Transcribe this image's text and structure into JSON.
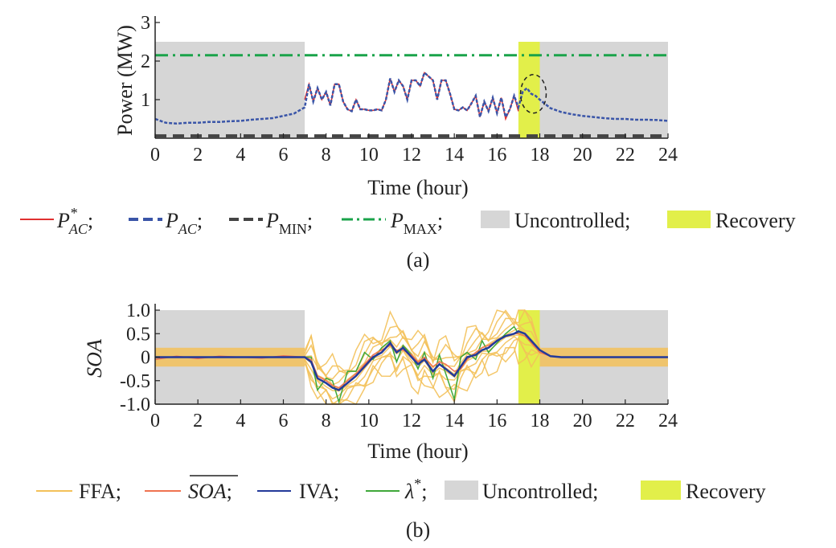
{
  "figure": {
    "colors": {
      "p_ac_star": "#e03030",
      "p_ac": "#3a55a8",
      "p_min": "#444444",
      "p_max": "#1aa34a",
      "uncontrolled": "#d6d6d6",
      "recovery": "#e2ef4a",
      "ffa": "#f3c15a",
      "soa_mean": "#ef7350",
      "iva": "#233a9a",
      "lambda": "#3fa83a",
      "circle": "#222222"
    }
  },
  "chart_data": [
    {
      "type": "line",
      "panel_label": "(a)",
      "xlabel": "Time (hour)",
      "ylabel": "Power (MW)",
      "xlim": [
        0,
        24
      ],
      "ylim": [
        0,
        3
      ],
      "xticks": [
        "0",
        "2",
        "4",
        "6",
        "8",
        "10",
        "12",
        "14",
        "16",
        "18",
        "20",
        "22",
        "24"
      ],
      "yticks": [
        "1",
        "2",
        "3"
      ],
      "shaded_regions": [
        {
          "name": "Uncontrolled",
          "x": [
            0,
            7
          ],
          "y": [
            0,
            2.5
          ]
        },
        {
          "name": "Uncontrolled",
          "x": [
            18,
            24
          ],
          "y": [
            0,
            2.5
          ]
        },
        {
          "name": "Recovery",
          "x": [
            17,
            18
          ],
          "y": [
            0,
            2.5
          ]
        }
      ],
      "annotation": {
        "type": "dashed-circle",
        "center": [
          17.7,
          1.15
        ],
        "radius": [
          0.6,
          0.5
        ]
      },
      "series": [
        {
          "id": "p_ac_star",
          "x": [
            7.0,
            7.2,
            7.4,
            7.6,
            7.8,
            8.0,
            8.2,
            8.4,
            8.6,
            8.8,
            9.0,
            9.2,
            9.4,
            9.6,
            9.8,
            10.0,
            10.2,
            10.4,
            10.6,
            10.8,
            11.0,
            11.2,
            11.4,
            11.6,
            11.8,
            12.0,
            12.2,
            12.4,
            12.6,
            12.8,
            13.0,
            13.2,
            13.4,
            13.6,
            13.8,
            14.0,
            14.2,
            14.4,
            14.6,
            14.8,
            15.0,
            15.2,
            15.4,
            15.6,
            15.8,
            16.0,
            16.2,
            16.4,
            16.6,
            16.8,
            17.0
          ],
          "y": [
            1.0,
            1.4,
            0.95,
            1.3,
            1.0,
            1.2,
            0.85,
            1.4,
            1.4,
            0.95,
            0.75,
            0.7,
            1.0,
            0.75,
            0.75,
            0.72,
            0.72,
            0.75,
            0.72,
            1.0,
            1.55,
            1.2,
            1.5,
            1.35,
            1.0,
            1.5,
            1.5,
            1.35,
            1.7,
            1.6,
            1.5,
            1.0,
            1.5,
            1.5,
            1.15,
            0.75,
            0.72,
            0.8,
            0.72,
            0.9,
            1.1,
            0.55,
            0.95,
            0.7,
            1.05,
            0.65,
            1.05,
            0.5,
            0.75,
            1.1,
            0.7
          ]
        },
        {
          "id": "p_ac",
          "x": [
            0,
            0.5,
            1,
            1.5,
            2,
            2.5,
            3,
            3.5,
            4,
            4.5,
            5,
            5.5,
            6,
            6.5,
            7.0,
            7.2,
            7.4,
            7.6,
            7.8,
            8.0,
            8.2,
            8.4,
            8.6,
            8.8,
            9.0,
            9.2,
            9.4,
            9.6,
            9.8,
            10.0,
            10.2,
            10.4,
            10.6,
            10.8,
            11.0,
            11.2,
            11.4,
            11.6,
            11.8,
            12.0,
            12.2,
            12.4,
            12.6,
            12.8,
            13.0,
            13.2,
            13.4,
            13.6,
            13.8,
            14.0,
            14.2,
            14.4,
            14.6,
            14.8,
            15.0,
            15.2,
            15.4,
            15.6,
            15.8,
            16.0,
            16.2,
            16.4,
            16.6,
            16.8,
            17.0,
            17.2,
            17.4,
            17.6,
            17.8,
            18.0,
            18.5,
            19,
            19.5,
            20,
            20.5,
            21,
            21.5,
            22,
            22.5,
            23,
            23.5,
            24
          ],
          "y": [
            0.5,
            0.4,
            0.38,
            0.4,
            0.4,
            0.42,
            0.42,
            0.44,
            0.45,
            0.48,
            0.5,
            0.52,
            0.58,
            0.64,
            0.8,
            1.4,
            0.95,
            1.3,
            1.0,
            1.2,
            0.85,
            1.4,
            1.4,
            0.95,
            0.75,
            0.7,
            1.0,
            0.75,
            0.75,
            0.72,
            0.72,
            0.75,
            0.72,
            1.0,
            1.55,
            1.2,
            1.5,
            1.35,
            1.0,
            1.5,
            1.5,
            1.35,
            1.7,
            1.6,
            1.5,
            1.0,
            1.5,
            1.5,
            1.15,
            0.75,
            0.72,
            0.8,
            0.72,
            0.9,
            1.1,
            0.55,
            0.95,
            0.7,
            1.05,
            0.65,
            1.05,
            0.55,
            0.75,
            1.1,
            0.8,
            1.2,
            1.3,
            1.15,
            1.1,
            1.0,
            0.78,
            0.68,
            0.62,
            0.58,
            0.55,
            0.52,
            0.5,
            0.5,
            0.48,
            0.48,
            0.47,
            0.45
          ]
        },
        {
          "id": "p_min",
          "x": [
            0,
            24
          ],
          "y": [
            0.06,
            0.06
          ]
        },
        {
          "id": "p_max",
          "x": [
            0,
            24
          ],
          "y": [
            2.15,
            2.15
          ]
        }
      ]
    },
    {
      "type": "line",
      "panel_label": "(b)",
      "xlabel": "Time (hour)",
      "ylabel": "SOA",
      "xlim": [
        0,
        24
      ],
      "ylim": [
        -1.0,
        1.0
      ],
      "xticks": [
        "0",
        "2",
        "4",
        "6",
        "8",
        "10",
        "12",
        "14",
        "16",
        "18",
        "20",
        "22",
        "24"
      ],
      "yticks": [
        "-1.0",
        "-0.5",
        "0",
        "0.5",
        "1.0"
      ],
      "shaded_regions": [
        {
          "name": "Uncontrolled",
          "x": [
            0,
            7
          ],
          "y": [
            -1.0,
            1.0
          ]
        },
        {
          "name": "Uncontrolled",
          "x": [
            18,
            24
          ],
          "y": [
            -1.0,
            1.0
          ]
        },
        {
          "name": "Recovery",
          "x": [
            17,
            18
          ],
          "y": [
            -1.0,
            1.0
          ]
        }
      ],
      "ffa_band": {
        "x": [
          0,
          7,
          18,
          24
        ],
        "half_width": 0.2
      },
      "series": [
        {
          "id": "iva",
          "x": [
            0,
            1,
            2,
            3,
            4,
            5,
            6,
            7,
            7.3,
            7.6,
            8.0,
            8.3,
            8.6,
            9.0,
            9.4,
            9.8,
            10.2,
            10.6,
            11.0,
            11.3,
            11.6,
            12.0,
            12.3,
            12.6,
            13.0,
            13.3,
            13.6,
            14.0,
            14.3,
            14.6,
            15.0,
            15.3,
            15.6,
            16.0,
            16.4,
            16.8,
            17.0,
            17.3,
            17.6,
            18.0,
            18.5,
            19,
            20,
            21,
            22,
            23,
            24
          ],
          "y": [
            0,
            0,
            0,
            0,
            0,
            0,
            0,
            0,
            -0.1,
            -0.45,
            -0.55,
            -0.65,
            -0.7,
            -0.55,
            -0.4,
            -0.2,
            0.0,
            0.1,
            0.3,
            0.1,
            0.2,
            0.0,
            -0.15,
            -0.05,
            -0.3,
            -0.15,
            -0.25,
            -0.4,
            -0.2,
            0.0,
            0.05,
            0.15,
            0.2,
            0.35,
            0.45,
            0.5,
            0.55,
            0.5,
            0.35,
            0.15,
            0.02,
            0,
            0,
            0,
            0,
            0,
            0
          ]
        },
        {
          "id": "soa_mean",
          "x": [
            0,
            1,
            2,
            3,
            4,
            5,
            6,
            7,
            7.3,
            7.6,
            8.0,
            8.3,
            8.6,
            9.0,
            9.4,
            9.8,
            10.2,
            10.6,
            11.0,
            11.3,
            11.6,
            12.0,
            12.3,
            12.6,
            13.0,
            13.3,
            13.6,
            14.0,
            14.3,
            14.6,
            15.0,
            15.3,
            15.6,
            16.0,
            16.4,
            16.8,
            17.0,
            17.3,
            17.6,
            18.0,
            18.5,
            19,
            20,
            21,
            22,
            23,
            24
          ],
          "y": [
            -0.05,
            0.02,
            -0.03,
            0.02,
            0,
            -0.02,
            0.03,
            0,
            -0.05,
            -0.4,
            -0.5,
            -0.6,
            -0.65,
            -0.5,
            -0.35,
            -0.15,
            0.05,
            0.15,
            0.25,
            0.15,
            0.15,
            0.05,
            -0.1,
            0.0,
            -0.2,
            -0.1,
            -0.15,
            -0.3,
            -0.25,
            -0.05,
            0.1,
            0.2,
            0.25,
            0.35,
            0.45,
            0.5,
            0.5,
            0.45,
            0.3,
            0.1,
            0.02,
            0,
            0,
            0,
            0,
            0,
            0
          ]
        },
        {
          "id": "lambda",
          "x": [
            7.0,
            7.3,
            7.6,
            8.0,
            8.3,
            8.6,
            9.0,
            9.4,
            9.8,
            10.2,
            10.6,
            11.0,
            11.3,
            11.6,
            12.0,
            12.3,
            12.6,
            13.0,
            13.3,
            13.6,
            14.0,
            14.3,
            14.6,
            15.0,
            15.3,
            15.6,
            16.0,
            16.4,
            16.8,
            17.0
          ],
          "y": [
            0,
            0.0,
            -0.7,
            -0.45,
            -0.5,
            -0.95,
            -0.3,
            -0.3,
            0.1,
            -0.05,
            0.2,
            0.35,
            -0.1,
            0.25,
            0.05,
            -0.25,
            0.1,
            -0.45,
            0.05,
            -0.35,
            -0.9,
            0.0,
            0.1,
            -0.05,
            0.35,
            0.1,
            0.3,
            0.5,
            0.65,
            0.5
          ]
        }
      ]
    }
  ],
  "legend_a": {
    "p_ac_star": {
      "base": "P",
      "sup": "*",
      "sub": "AC"
    },
    "p_ac": {
      "base": "P",
      "sub": "AC"
    },
    "p_min": {
      "base": "P",
      "sub": "MIN"
    },
    "p_max": {
      "base": "P",
      "sub": "MAX"
    },
    "uncontrolled": "Uncontrolled;",
    "recovery": "Recovery",
    "sep": ";"
  },
  "legend_b": {
    "ffa": "FFA;",
    "soa": "SOA",
    "iva": "IVA;",
    "lambda": {
      "base": "λ",
      "sup": "*"
    },
    "uncontrolled": "Uncontrolled;",
    "recovery": "Recovery",
    "sep": ";"
  }
}
